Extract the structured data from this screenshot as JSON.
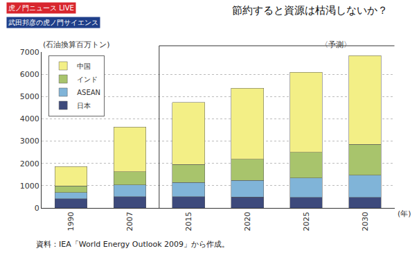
{
  "chart_data": {
    "type": "bar",
    "title": "節約すると資源は枯渇しないか？",
    "banner": [
      "虎ノ門ニュース LIVE",
      "武田邦彦の虎ノ門サイエンス"
    ],
    "ylabel": "(石油換算百万トン)",
    "xlabel": "(年)",
    "annotations": [
      "〈予測〉"
    ],
    "source": "資料：IEA「World Energy Outlook 2009」から作成。",
    "categories": [
      "1990",
      "2007",
      "2015",
      "2020",
      "2025",
      "2030"
    ],
    "series": [
      {
        "name": "中国",
        "color": "#f3ef86",
        "values": [
          870,
          2000,
          2790,
          3180,
          3590,
          3990
        ]
      },
      {
        "name": "インド",
        "color": "#a8c46c",
        "values": [
          300,
          600,
          800,
          950,
          1150,
          1380
        ]
      },
      {
        "name": "ASEAN",
        "color": "#80b4d8",
        "values": [
          270,
          520,
          650,
          750,
          870,
          1000
        ]
      },
      {
        "name": "日本",
        "color": "#3d4a7c",
        "values": [
          420,
          510,
          500,
          490,
          480,
          470
        ]
      }
    ],
    "ylim": [
      0,
      7000
    ],
    "yticks": [
      0,
      1000,
      2000,
      3000,
      4000,
      5000,
      6000,
      7000
    ],
    "grid": true,
    "stacked": true,
    "legend": "top left"
  }
}
